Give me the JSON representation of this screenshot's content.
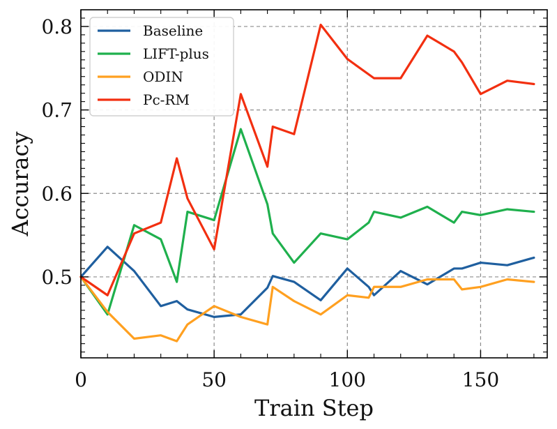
{
  "chart_data": {
    "type": "line",
    "title": "",
    "xlabel": "Train Step",
    "ylabel": "Accuracy",
    "xlim": [
      0,
      175
    ],
    "ylim": [
      0.403,
      0.82
    ],
    "grid": true,
    "legend": "top-left",
    "x_ticks": [
      0,
      50,
      100,
      150
    ],
    "y_ticks": [
      0.5,
      0.6,
      0.7,
      0.8
    ],
    "x_tick_labels": [
      "0",
      "50",
      "100",
      "150"
    ],
    "y_tick_labels": [
      "0.5",
      "0.6",
      "0.7",
      "0.8"
    ],
    "series": [
      {
        "name": "Baseline",
        "color": "#1f5f9f",
        "x": [
          0,
          10,
          20,
          30,
          36,
          40,
          50,
          60,
          70,
          72,
          80,
          90,
          100,
          108,
          110,
          120,
          130,
          140,
          143,
          150,
          160,
          170
        ],
        "values": [
          0.5,
          0.536,
          0.507,
          0.465,
          0.471,
          0.461,
          0.452,
          0.455,
          0.487,
          0.501,
          0.494,
          0.472,
          0.51,
          0.488,
          0.478,
          0.507,
          0.491,
          0.51,
          0.51,
          0.517,
          0.514,
          0.523
        ]
      },
      {
        "name": "LIFT-plus",
        "color": "#1fb04d",
        "x": [
          0,
          10,
          20,
          30,
          36,
          40,
          50,
          60,
          70,
          72,
          80,
          90,
          100,
          108,
          110,
          120,
          130,
          140,
          143,
          150,
          160,
          170
        ],
        "values": [
          0.5,
          0.455,
          0.562,
          0.545,
          0.494,
          0.578,
          0.568,
          0.677,
          0.587,
          0.552,
          0.517,
          0.552,
          0.545,
          0.565,
          0.578,
          0.571,
          0.584,
          0.565,
          0.578,
          0.574,
          0.581,
          0.578
        ]
      },
      {
        "name": "ODIN",
        "color": "#ffa020",
        "x": [
          0,
          10,
          20,
          30,
          36,
          40,
          50,
          60,
          70,
          72,
          80,
          90,
          100,
          108,
          110,
          120,
          130,
          140,
          143,
          150,
          160,
          170
        ],
        "values": [
          0.5,
          0.458,
          0.426,
          0.43,
          0.423,
          0.443,
          0.465,
          0.452,
          0.443,
          0.488,
          0.471,
          0.455,
          0.478,
          0.475,
          0.488,
          0.488,
          0.497,
          0.497,
          0.485,
          0.488,
          0.497,
          0.494
        ]
      },
      {
        "name": "Pc-RM",
        "color": "#f22f10",
        "x": [
          0,
          10,
          20,
          30,
          36,
          40,
          50,
          60,
          70,
          72,
          80,
          90,
          100,
          110,
          120,
          130,
          140,
          143,
          150,
          160,
          170
        ],
        "values": [
          0.5,
          0.478,
          0.552,
          0.565,
          0.642,
          0.594,
          0.533,
          0.719,
          0.632,
          0.68,
          0.671,
          0.802,
          0.761,
          0.738,
          0.738,
          0.789,
          0.77,
          0.757,
          0.719,
          0.735,
          0.731
        ]
      }
    ]
  }
}
